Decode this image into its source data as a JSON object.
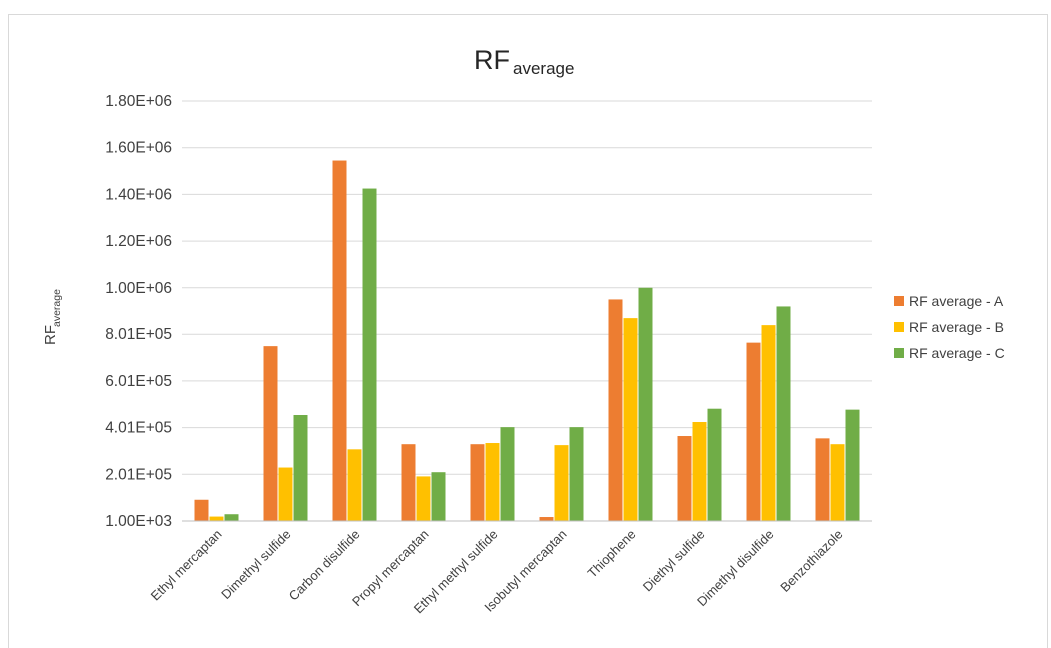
{
  "chart_data": {
    "type": "bar",
    "title": "RF",
    "title_subscript": "average",
    "ylabel": "RF",
    "ylabel_subscript": "average",
    "xlabel": "",
    "ylim": [
      1000,
      1800000
    ],
    "y_ticks": [
      1000,
      201000,
      401000,
      601000,
      801000,
      1000000,
      1200000,
      1400000,
      1600000,
      1800000
    ],
    "y_tick_labels": [
      "1.00E+03",
      "2.01E+05",
      "4.01E+05",
      "6.01E+05",
      "8.01E+05",
      "1.00E+06",
      "1.20E+06",
      "1.40E+06",
      "1.60E+06",
      "1.80E+06"
    ],
    "grid": true,
    "legend_position": "right",
    "categories": [
      "Ethyl mercaptan",
      "Dimethyl sulfide",
      "Carbon disulfide",
      "Propyl mercaptan",
      "Ethyl methyl sulfide",
      "Isobutyl mercaptan",
      "Thiophene",
      "Diethyl sulfide",
      "Dimethyl disulfide",
      "Benzothiazole"
    ],
    "series": [
      {
        "name": "RF average - A",
        "color": "#ed7d31",
        "values": [
          92000,
          750000,
          1545000,
          330000,
          330000,
          18000,
          950000,
          365000,
          765000,
          355000
        ]
      },
      {
        "name": "RF average - B",
        "color": "#ffc000",
        "values": [
          20000,
          230000,
          308000,
          192000,
          335000,
          326000,
          870000,
          425000,
          840000,
          330000
        ]
      },
      {
        "name": "RF average - C",
        "color": "#70ad47",
        "values": [
          30000,
          455000,
          1425000,
          210000,
          403000,
          403000,
          1000000,
          482000,
          920000,
          478000
        ]
      }
    ]
  }
}
